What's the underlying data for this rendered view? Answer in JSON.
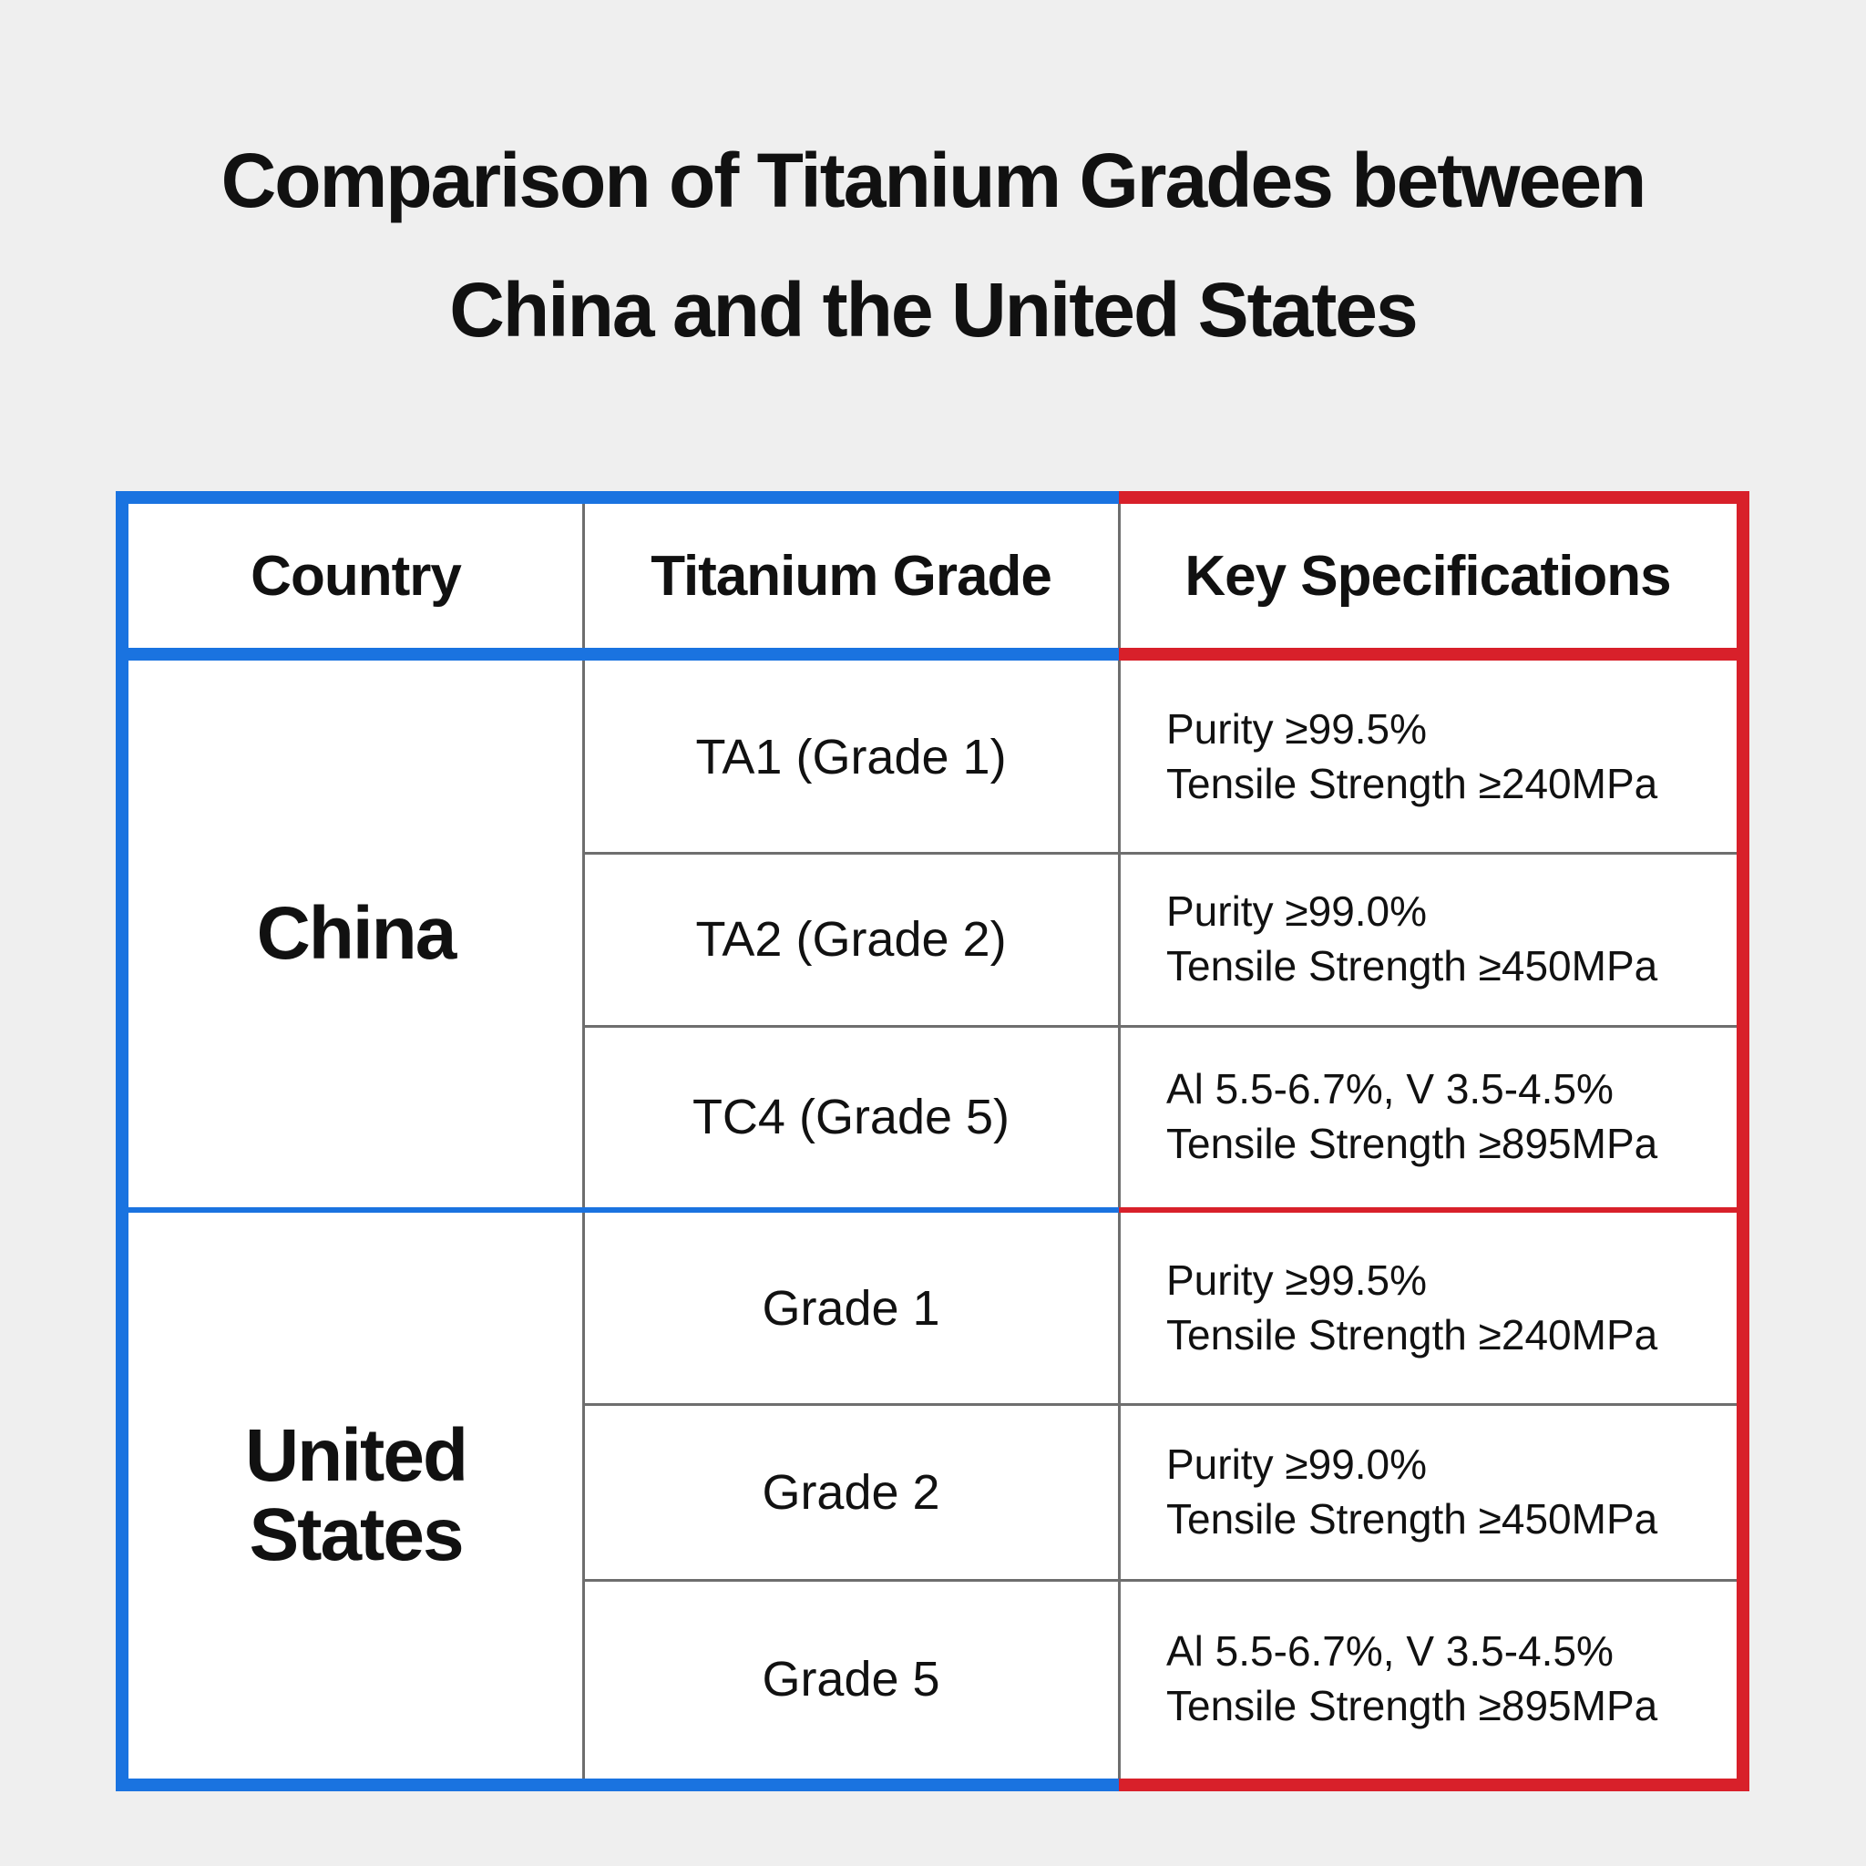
{
  "header": {
    "title": [
      "Comparison of Titanium Grades between",
      "China and the United States"
    ]
  },
  "table": {
    "columns": [
      "Country",
      "Titanium Grade",
      "Key Specifications"
    ],
    "groups": [
      {
        "country": "China",
        "rows": [
          {
            "grade": "TA1 (Grade 1)",
            "specs": [
              "Purity ≥99.5%",
              "Tensile Strength ≥240MPa"
            ]
          },
          {
            "grade": "TA2 (Grade 2)",
            "specs": [
              "Purity ≥99.0%",
              "Tensile Strength ≥450MPa"
            ]
          },
          {
            "grade": "TC4 (Grade 5)",
            "specs": [
              "Al 5.5-6.7%, V 3.5-4.5%",
              "Tensile Strength ≥895MPa"
            ]
          }
        ]
      },
      {
        "country": "United States",
        "rows": [
          {
            "grade": "Grade 1",
            "specs": [
              "Purity ≥99.5%",
              "Tensile Strength ≥240MPa"
            ]
          },
          {
            "grade": "Grade 2",
            "specs": [
              "Purity ≥99.0%",
              "Tensile Strength ≥450MPa"
            ]
          },
          {
            "grade": "Grade 5",
            "specs": [
              "Al 5.5-6.7%, V 3.5-4.5%",
              "Tensile Strength ≥895MPa"
            ]
          }
        ]
      }
    ]
  }
}
